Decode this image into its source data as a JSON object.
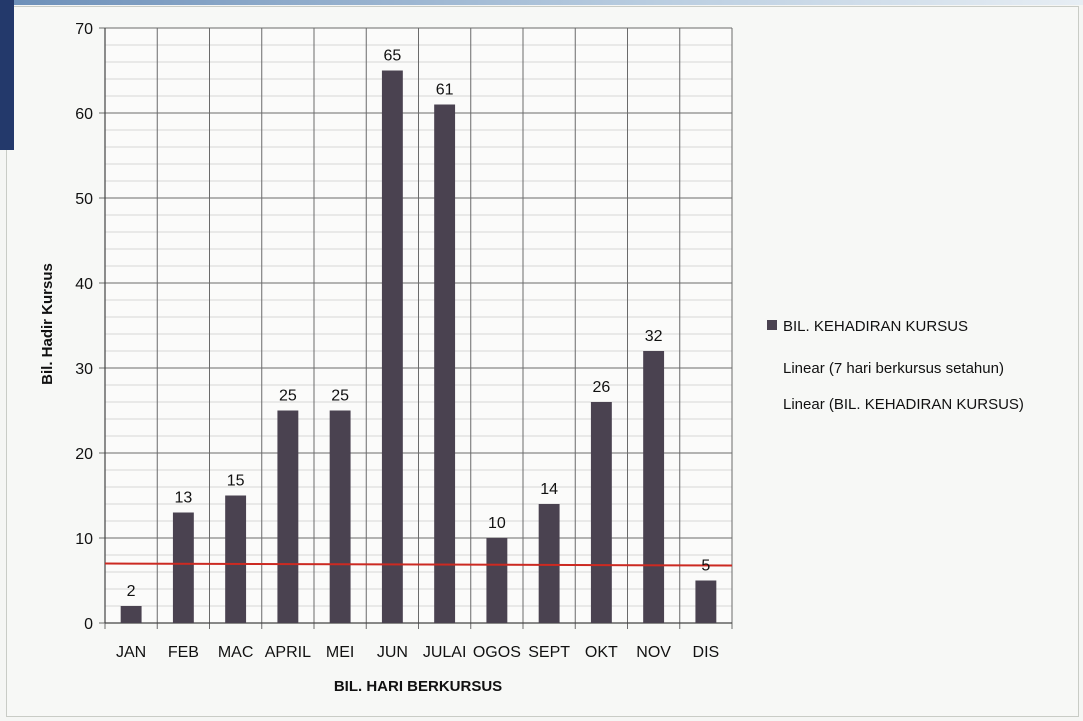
{
  "chart_data": {
    "type": "bar",
    "categories": [
      "JAN",
      "FEB",
      "MAC",
      "APRIL",
      "MEI",
      "JUN",
      "JULAI",
      "OGOS",
      "SEPT",
      "OKT",
      "NOV",
      "DIS"
    ],
    "series": [
      {
        "name": "BIL. KEHADIRAN KURSUS",
        "values": [
          2,
          13,
          15,
          25,
          25,
          65,
          61,
          10,
          14,
          26,
          32,
          5
        ],
        "color": "#4a4250"
      }
    ],
    "lines": [
      {
        "name": "Linear (7 hari berkursus setahun)",
        "value": 7,
        "color": "#cc2a22"
      },
      {
        "name": "Linear (BIL. KEHADIRAN KURSUS)",
        "value": 7,
        "color": "#cc2a22"
      }
    ],
    "xlabel": "BIL. HARI BERKURSUS",
    "ylabel": "Bil. Hadir Kursus",
    "ylim": [
      0,
      70
    ],
    "yticks": [
      0,
      10,
      20,
      30,
      40,
      50,
      60,
      70
    ],
    "minor_gridlines": true,
    "grid": true,
    "legend_position": "right"
  }
}
